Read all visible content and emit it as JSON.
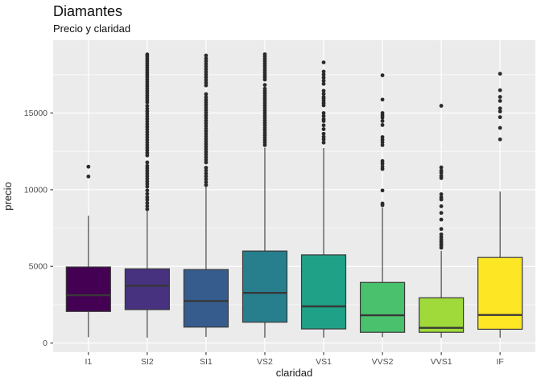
{
  "chart_data": {
    "type": "boxplot",
    "title": "Diamantes",
    "subtitle": "Precio y claridad",
    "xlabel": "claridad",
    "ylabel": "precio",
    "categories": [
      "I1",
      "SI2",
      "SI1",
      "VS2",
      "VS1",
      "VVS2",
      "VVS1",
      "IF"
    ],
    "y_ticks": [
      0,
      5000,
      10000,
      15000
    ],
    "y_minor_ticks": [
      2500,
      7500,
      12500,
      17500
    ],
    "ylim": [
      -599,
      19748
    ],
    "grid": "major+minor, white on gray panel",
    "legend_position": "none",
    "panel_bg": "#EBEBEB",
    "grid_color": "#FFFFFF",
    "box_stroke": "#383838",
    "outlier_color": "#2b2b2b",
    "tick_label_color": "#4D4D4D",
    "axis_title_color": "#1a1a1a",
    "series": [
      {
        "category": "I1",
        "fill": "#440154",
        "low": 380,
        "q1": 2060,
        "median": 3120,
        "q3": 4960,
        "high": 8300,
        "outliers": [
          10860,
          11500
        ]
      },
      {
        "category": "SI2",
        "fill": "#46327E",
        "low": 350,
        "q1": 2180,
        "median": 3730,
        "q3": 4840,
        "high": 8610,
        "outliers": [
          8730,
          8930,
          9130,
          9340,
          9510,
          9730,
          9950,
          10200,
          10370,
          10540,
          10710,
          10880,
          11050,
          11220,
          11390,
          11560,
          11780,
          12230,
          12400,
          12570,
          12740,
          12910,
          13080,
          13250,
          13420,
          13590,
          13760,
          13930,
          14100,
          14270,
          14440,
          14610,
          14780,
          14950,
          15120,
          15290,
          15470,
          15700,
          15850,
          16000,
          16150,
          16300,
          16450,
          16600,
          16750,
          16900,
          17050,
          17200,
          17350,
          17500,
          17650,
          17800,
          17950,
          18100,
          18250,
          18400,
          18550,
          18700,
          18820
        ]
      },
      {
        "category": "SI1",
        "fill": "#365C8D",
        "low": 400,
        "q1": 1040,
        "median": 2740,
        "q3": 4790,
        "high": 10180,
        "outliers": [
          10300,
          10490,
          10680,
          10870,
          11060,
          11250,
          11430,
          11780,
          11950,
          12120,
          12290,
          12460,
          12630,
          12800,
          12970,
          13140,
          13310,
          13480,
          13650,
          13820,
          13990,
          14160,
          14330,
          14500,
          14670,
          14840,
          15010,
          15180,
          15350,
          15520,
          15690,
          15860,
          16030,
          16230,
          16800,
          16975,
          17150,
          17325,
          17500,
          17675,
          17850,
          18025,
          18200,
          18375,
          18550,
          18750
        ]
      },
      {
        "category": "VS2",
        "fill": "#277F8E",
        "low": 350,
        "q1": 1360,
        "median": 3270,
        "q3": 6000,
        "high": 12740,
        "outliers": [
          12910,
          13070,
          13230,
          13390,
          13550,
          13710,
          13870,
          14030,
          14190,
          14350,
          14510,
          14670,
          14830,
          14990,
          15150,
          15310,
          15470,
          15630,
          15790,
          15950,
          16110,
          16270,
          16430,
          16590,
          16830,
          17180,
          17330,
          17480,
          17630,
          17780,
          17930,
          18080,
          18230,
          18380,
          18530,
          18680,
          18830
        ]
      },
      {
        "category": "VS1",
        "fill": "#1FA187",
        "low": 350,
        "q1": 920,
        "median": 2390,
        "q3": 5750,
        "high": 12720,
        "outliers": [
          13070,
          13280,
          13450,
          13650,
          13950,
          14200,
          14480,
          14600,
          14800,
          15000,
          15500,
          15650,
          15800,
          15950,
          16050,
          16250,
          16450,
          16900,
          17100,
          17300,
          17500,
          17700,
          18300
        ]
      },
      {
        "category": "VVS2",
        "fill": "#4AC16D",
        "low": 380,
        "q1": 700,
        "median": 1810,
        "q3": 3950,
        "high": 8820,
        "outliers": [
          8990,
          9100,
          9950,
          11345,
          11500,
          11700,
          11865,
          12910,
          13090,
          13260,
          13430,
          14220,
          14480,
          14700,
          14850,
          15000,
          15875,
          17460
        ]
      },
      {
        "category": "VVS1",
        "fill": "#9FDA3A",
        "low": 350,
        "q1": 700,
        "median": 990,
        "q3": 2950,
        "high": 6010,
        "outliers": [
          6215,
          6350,
          6475,
          6600,
          6740,
          6900,
          7085,
          7435,
          8050,
          8485,
          8920,
          9360,
          9500,
          9705,
          10755,
          10900,
          11105,
          11250,
          11455,
          15470
        ]
      },
      {
        "category": "IF",
        "fill": "#FDE725",
        "low": 350,
        "q1": 900,
        "median": 1830,
        "q3": 5580,
        "high": 9880,
        "outliers": [
          13280,
          14030,
          14730,
          15100,
          15300,
          15790,
          16050,
          16485,
          17560
        ]
      }
    ]
  }
}
